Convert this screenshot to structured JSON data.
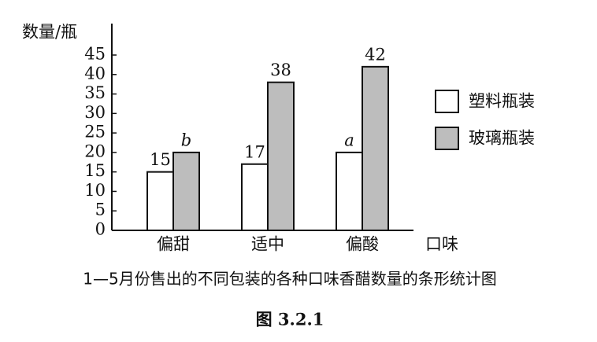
{
  "chart_data": {
    "type": "bar",
    "title": "1—5月份售出的不同包装的各种口味香醋数量的条形统计图",
    "subtitle": "图 3.2.1",
    "y_label": "数量/瓶",
    "x_label": "口味",
    "categories": [
      "偏甜",
      "适中",
      "偏酸"
    ],
    "series": [
      {
        "name": "塑料瓶装",
        "color": "#ffffff",
        "values": [
          15,
          17,
          20
        ],
        "value_labels": [
          "15",
          "17",
          "a"
        ]
      },
      {
        "name": "玻璃瓶装",
        "color": "#bdbdbd",
        "values": [
          20,
          38,
          42
        ],
        "value_labels": [
          "b",
          "38",
          "42"
        ]
      }
    ],
    "ylim": [
      0,
      45
    ],
    "yticks": [
      0,
      5,
      10,
      15,
      20,
      25,
      30,
      35,
      40,
      45
    ],
    "legend": "right"
  }
}
